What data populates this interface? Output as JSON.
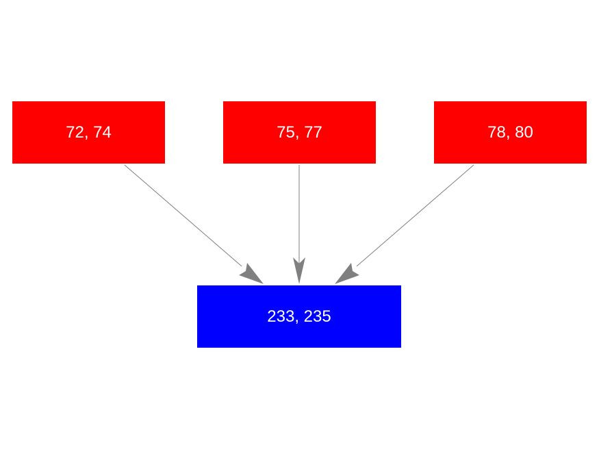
{
  "nodes": {
    "source_1": {
      "label": "72, 74",
      "color": "#ff0000"
    },
    "source_2": {
      "label": "75, 77",
      "color": "#ff0000"
    },
    "source_3": {
      "label": "78, 80",
      "color": "#ff0000"
    },
    "target": {
      "label": "233, 235",
      "color": "#0000ff"
    }
  },
  "edges": [
    {
      "from": "source_1",
      "to": "target"
    },
    {
      "from": "source_2",
      "to": "target"
    },
    {
      "from": "source_3",
      "to": "target"
    }
  ],
  "edge_color": "#808080"
}
